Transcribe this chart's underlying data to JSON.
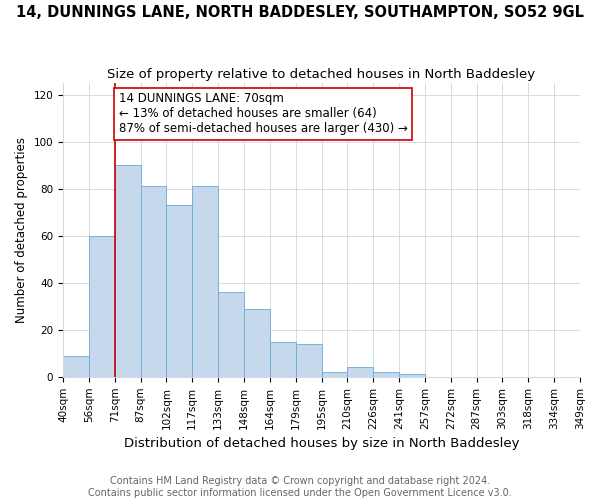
{
  "title": "14, DUNNINGS LANE, NORTH BADDESLEY, SOUTHAMPTON, SO52 9GL",
  "subtitle": "Size of property relative to detached houses in North Baddesley",
  "xlabel": "Distribution of detached houses by size in North Baddesley",
  "ylabel": "Number of detached properties",
  "bin_labels": [
    "40sqm",
    "56sqm",
    "71sqm",
    "87sqm",
    "102sqm",
    "117sqm",
    "133sqm",
    "148sqm",
    "164sqm",
    "179sqm",
    "195sqm",
    "210sqm",
    "226sqm",
    "241sqm",
    "257sqm",
    "272sqm",
    "287sqm",
    "303sqm",
    "318sqm",
    "334sqm",
    "349sqm"
  ],
  "counts": [
    9,
    60,
    90,
    81,
    73,
    81,
    36,
    29,
    15,
    14,
    2,
    4,
    2,
    1,
    0,
    0,
    0,
    0,
    0,
    0
  ],
  "bar_color": "#c5d8ec",
  "bar_edge_color": "#6aaad4",
  "property_line_index": 2,
  "property_line_color": "#cc0000",
  "annotation_text": "14 DUNNINGS LANE: 70sqm\n← 13% of detached houses are smaller (64)\n87% of semi-detached houses are larger (430) →",
  "annotation_box_color": "#ffffff",
  "annotation_box_edge_color": "#cc0000",
  "ylim": [
    0,
    125
  ],
  "yticks": [
    0,
    20,
    40,
    60,
    80,
    100,
    120
  ],
  "footer_text": "Contains HM Land Registry data © Crown copyright and database right 2024.\nContains public sector information licensed under the Open Government Licence v3.0.",
  "title_fontsize": 10.5,
  "subtitle_fontsize": 9.5,
  "xlabel_fontsize": 9.5,
  "ylabel_fontsize": 8.5,
  "tick_fontsize": 7.5,
  "annotation_fontsize": 8.5,
  "footer_fontsize": 7
}
